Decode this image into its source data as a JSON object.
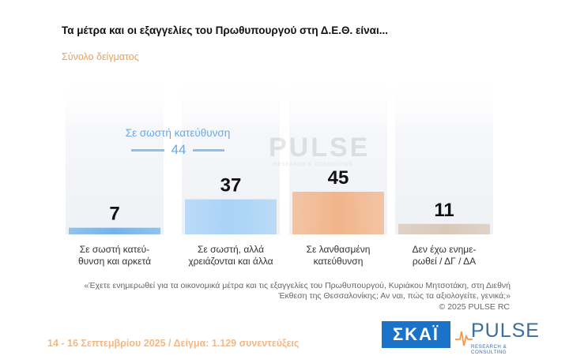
{
  "header": {
    "title": "Τα μέτρα και οι εξαγγελίες του Πρωθυπουργού στη Δ.Ε.Θ. είναι...",
    "subtitle": "Σύνολο δείγματος"
  },
  "annotation": {
    "label": "Σε σωστή κατεύθυνση",
    "value": "44"
  },
  "watermark": {
    "main": "PULSE",
    "sub": "RESEARCH & CONSULTING"
  },
  "chart_data": {
    "type": "bar",
    "categories": [
      "Σε σωστή κατεύ-θυνση και αρκετά",
      "Σε σωστή, αλλά χρειάζονται και άλλα",
      "Σε λανθασμένη κατεύθυνση",
      "Δεν έχω ενημε-ρώθεί / ΔΓ / ΔΑ"
    ],
    "category_lines": [
      [
        "Σε σωστή κατεύ-",
        "θυνση και αρκετά"
      ],
      [
        "Σε σωστή, αλλά",
        "χρειάζονται και άλλα"
      ],
      [
        "Σε λανθασμένη",
        "κατεύθυνση"
      ],
      [
        "Δεν έχω ενημε-",
        "ρωθεί / ΔΓ / ΔΑ"
      ]
    ],
    "values": [
      7,
      37,
      45,
      11
    ],
    "value_labels": [
      "7",
      "37",
      "45",
      "11"
    ],
    "colors": [
      "#73b3ea",
      "#a9d3f7",
      "#f2b58a",
      "#d9c8b8"
    ],
    "title": "Τα μέτρα και οι εξαγγελίες του Πρωθυπουργού στη Δ.Ε.Θ. είναι...",
    "xlabel": "",
    "ylabel": "",
    "grid": false,
    "legend": "none"
  },
  "footnote": {
    "question": "«Έχετε ενημερωθεί για τα οικονομικά μέτρα και τις εξαγγελίες του Πρωθυπουργού, Κυριάκου Μητσοτάκη, στη Διεθνή Έκθεση της Θεσσαλονίκης; Αν ναι, πώς τα αξιολογείτε, γενικά;»",
    "copyright": "©  2025  PULSE RC"
  },
  "fieldwork": "14 - 16 Σεπτεμβρίου 2025  /  Δείγμα:  1.129 συνεντεύξεις",
  "logos": {
    "skai": "ΣΚΑΪ",
    "pulse_main": "PULSE",
    "pulse_sub": "RESEARCH & CONSULTING"
  }
}
